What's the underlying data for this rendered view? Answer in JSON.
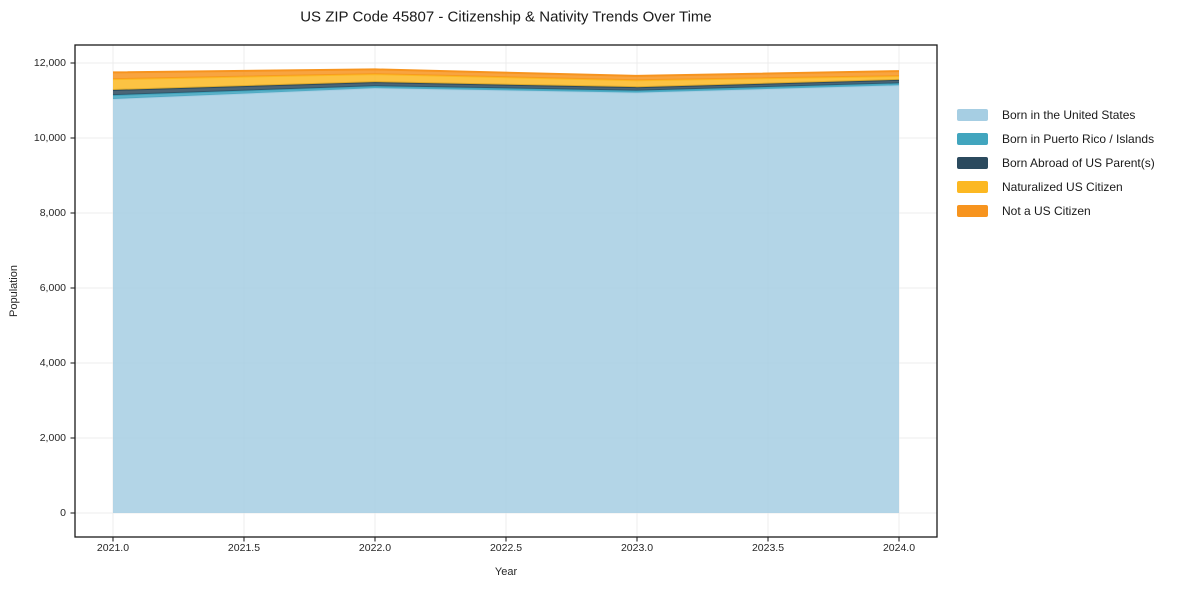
{
  "figure": {
    "background": "#ffffff"
  },
  "chart_data": {
    "type": "area",
    "stacked": true,
    "title": "US ZIP Code 45807 - Citizenship & Nativity Trends Over Time",
    "xlabel": "Year",
    "ylabel": "Population",
    "x": [
      2021,
      2022,
      2023,
      2024
    ],
    "series": [
      {
        "name": "Born in the United States",
        "color": "#A6CEE3",
        "values": [
          11040,
          11330,
          11210,
          11405
        ]
      },
      {
        "name": "Born in Puerto Rico / Islands",
        "color": "#41A5BE",
        "values": [
          105,
          55,
          55,
          55
        ]
      },
      {
        "name": "Born Abroad of US Parent(s)",
        "color": "#2B4A5E",
        "values": [
          135,
          105,
          90,
          90
        ]
      },
      {
        "name": "Naturalized US Citizen",
        "color": "#FCB822",
        "values": [
          290,
          215,
          185,
          100
        ]
      },
      {
        "name": "Not a US Citizen",
        "color": "#F7941E",
        "values": [
          180,
          125,
          115,
          135
        ]
      }
    ],
    "totals": [
      11750,
      11830,
      11655,
      11785
    ],
    "xlim": [
      2020.855,
      2024.145
    ],
    "ylim": [
      -640,
      12480
    ],
    "xticks": {
      "values": [
        2021.0,
        2021.5,
        2022.0,
        2022.5,
        2023.0,
        2023.5,
        2024.0
      ],
      "labels": [
        "2021.0",
        "2021.5",
        "2022.0",
        "2022.5",
        "2023.0",
        "2023.5",
        "2024.0"
      ]
    },
    "yticks": {
      "values": [
        0,
        2000,
        4000,
        6000,
        8000,
        10000,
        12000
      ],
      "labels": [
        "0",
        "2,000",
        "4,000",
        "6,000",
        "8,000",
        "10,000",
        "12,000"
      ]
    },
    "grid": true,
    "legend_position": "right",
    "fill_opacity": 0.85
  }
}
